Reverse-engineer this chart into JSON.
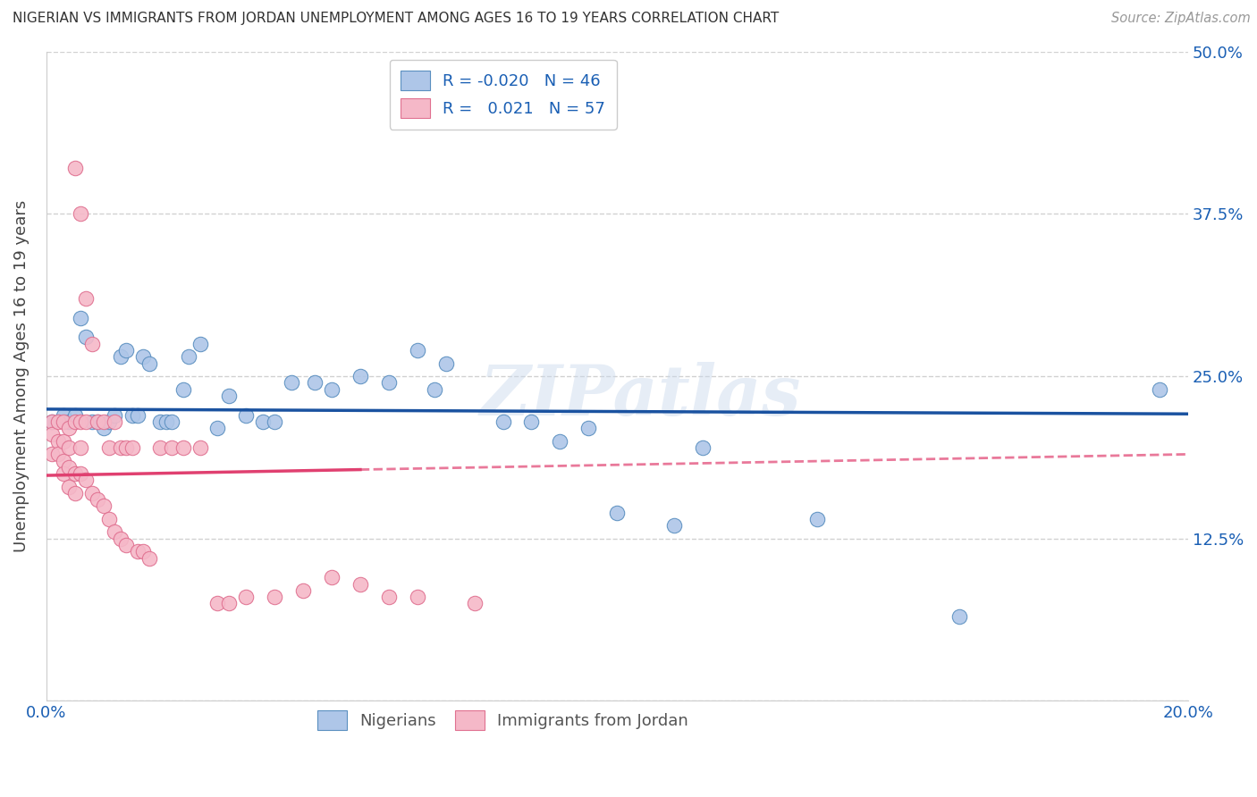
{
  "title": "NIGERIAN VS IMMIGRANTS FROM JORDAN UNEMPLOYMENT AMONG AGES 16 TO 19 YEARS CORRELATION CHART",
  "source": "Source: ZipAtlas.com",
  "ylabel": "Unemployment Among Ages 16 to 19 years",
  "xlim": [
    0.0,
    0.2
  ],
  "ylim": [
    0.0,
    0.5
  ],
  "xtick_positions": [
    0.0,
    0.05,
    0.1,
    0.15,
    0.2
  ],
  "xticklabels": [
    "0.0%",
    "",
    "",
    "",
    "20.0%"
  ],
  "ytick_positions": [
    0.0,
    0.125,
    0.25,
    0.375,
    0.5
  ],
  "yticklabels": [
    "",
    "12.5%",
    "25.0%",
    "37.5%",
    "50.0%"
  ],
  "blue_R": "-0.020",
  "blue_N": "46",
  "pink_R": "0.021",
  "pink_N": "57",
  "blue_label": "Nigerians",
  "pink_label": "Immigrants from Jordan",
  "blue_scatter_color": "#aec6e8",
  "pink_scatter_color": "#f5b8c8",
  "blue_edge_color": "#5a8fc0",
  "pink_edge_color": "#e07090",
  "blue_line_color": "#1a52a0",
  "pink_line_color": "#e04070",
  "watermark": "ZIPatlas",
  "background_color": "#ffffff",
  "grid_color": "#cccccc",
  "blue_x": [
    0.001,
    0.003,
    0.004,
    0.005,
    0.006,
    0.007,
    0.008,
    0.009,
    0.01,
    0.011,
    0.012,
    0.013,
    0.014,
    0.015,
    0.016,
    0.017,
    0.018,
    0.02,
    0.021,
    0.022,
    0.024,
    0.025,
    0.027,
    0.03,
    0.032,
    0.035,
    0.038,
    0.04,
    0.043,
    0.047,
    0.05,
    0.055,
    0.06,
    0.065,
    0.068,
    0.07,
    0.08,
    0.085,
    0.09,
    0.095,
    0.1,
    0.11,
    0.115,
    0.135,
    0.16,
    0.195
  ],
  "blue_y": [
    0.215,
    0.22,
    0.215,
    0.22,
    0.295,
    0.28,
    0.215,
    0.215,
    0.21,
    0.215,
    0.22,
    0.265,
    0.27,
    0.22,
    0.22,
    0.265,
    0.26,
    0.215,
    0.215,
    0.215,
    0.24,
    0.265,
    0.275,
    0.21,
    0.235,
    0.22,
    0.215,
    0.215,
    0.245,
    0.245,
    0.24,
    0.25,
    0.245,
    0.27,
    0.24,
    0.26,
    0.215,
    0.215,
    0.2,
    0.21,
    0.145,
    0.135,
    0.195,
    0.14,
    0.065,
    0.24
  ],
  "pink_x": [
    0.001,
    0.001,
    0.001,
    0.002,
    0.002,
    0.002,
    0.003,
    0.003,
    0.003,
    0.003,
    0.004,
    0.004,
    0.004,
    0.004,
    0.005,
    0.005,
    0.005,
    0.005,
    0.006,
    0.006,
    0.006,
    0.006,
    0.007,
    0.007,
    0.007,
    0.008,
    0.008,
    0.009,
    0.009,
    0.01,
    0.01,
    0.011,
    0.011,
    0.012,
    0.012,
    0.013,
    0.013,
    0.014,
    0.014,
    0.015,
    0.016,
    0.017,
    0.018,
    0.02,
    0.022,
    0.024,
    0.027,
    0.03,
    0.032,
    0.035,
    0.04,
    0.045,
    0.05,
    0.055,
    0.06,
    0.065,
    0.075
  ],
  "pink_y": [
    0.215,
    0.205,
    0.19,
    0.215,
    0.2,
    0.19,
    0.215,
    0.2,
    0.185,
    0.175,
    0.21,
    0.195,
    0.18,
    0.165,
    0.41,
    0.215,
    0.175,
    0.16,
    0.375,
    0.215,
    0.195,
    0.175,
    0.31,
    0.215,
    0.17,
    0.275,
    0.16,
    0.215,
    0.155,
    0.215,
    0.15,
    0.195,
    0.14,
    0.215,
    0.13,
    0.195,
    0.125,
    0.195,
    0.12,
    0.195,
    0.115,
    0.115,
    0.11,
    0.195,
    0.195,
    0.195,
    0.195,
    0.075,
    0.075,
    0.08,
    0.08,
    0.085,
    0.095,
    0.09,
    0.08,
    0.08,
    0.075
  ]
}
